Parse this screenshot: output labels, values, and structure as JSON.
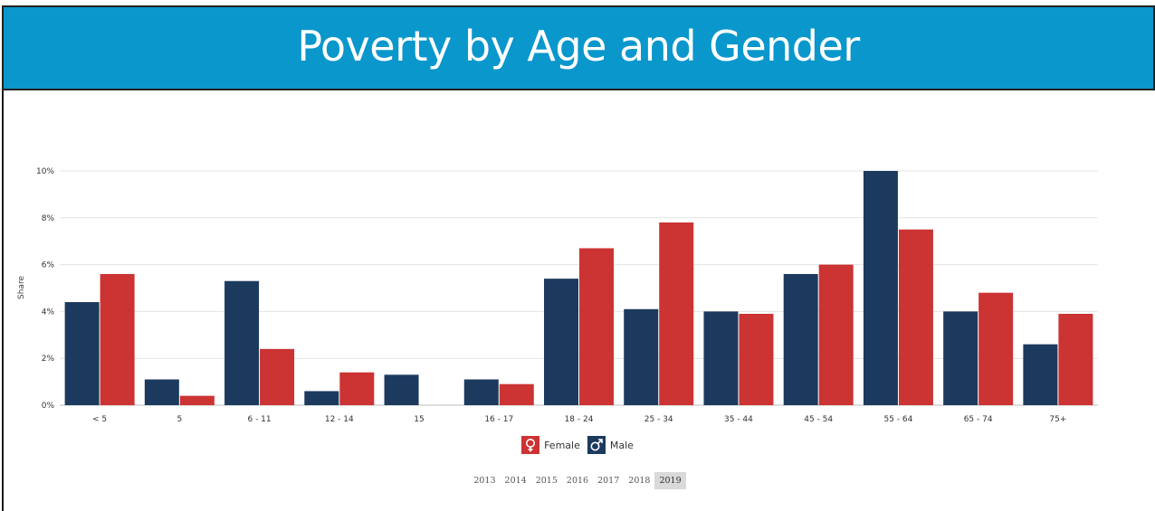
{
  "header": {
    "title": "Poverty by Age and Gender"
  },
  "legend": {
    "female_label": "Female",
    "male_label": "Male",
    "female_icon": "female-symbol-icon",
    "male_icon": "male-symbol-icon"
  },
  "years": {
    "options": [
      "2013",
      "2014",
      "2015",
      "2016",
      "2017",
      "2018",
      "2019"
    ],
    "selected": "2019"
  },
  "colors": {
    "male": "#1c3a5e",
    "female": "#cc3333",
    "grid": "#e4e4e4",
    "header": "#0a97cc"
  },
  "chart_data": {
    "type": "bar",
    "title": "Poverty by Age and Gender",
    "ylabel": "Share",
    "xlabel": "",
    "ylim": [
      0,
      10
    ],
    "yticks": [
      "0%",
      "2%",
      "4%",
      "6%",
      "8%",
      "10%"
    ],
    "ytick_values": [
      0,
      2,
      4,
      6,
      8,
      10
    ],
    "grid": true,
    "legend_position": "bottom-center",
    "categories": [
      "< 5",
      "5",
      "6 - 11",
      "12 - 14",
      "15",
      "16 - 17",
      "18 - 24",
      "25 - 34",
      "35 - 44",
      "45 - 54",
      "55 - 64",
      "65 - 74",
      "75+"
    ],
    "series": [
      {
        "name": "Male",
        "values": [
          4.4,
          1.1,
          5.3,
          0.6,
          1.3,
          1.1,
          5.4,
          4.1,
          4.0,
          5.6,
          10.0,
          4.0,
          2.6
        ]
      },
      {
        "name": "Female",
        "values": [
          5.6,
          0.4,
          2.4,
          1.4,
          0,
          0.9,
          6.7,
          7.8,
          3.9,
          6.0,
          7.5,
          4.8,
          3.9
        ]
      }
    ]
  }
}
